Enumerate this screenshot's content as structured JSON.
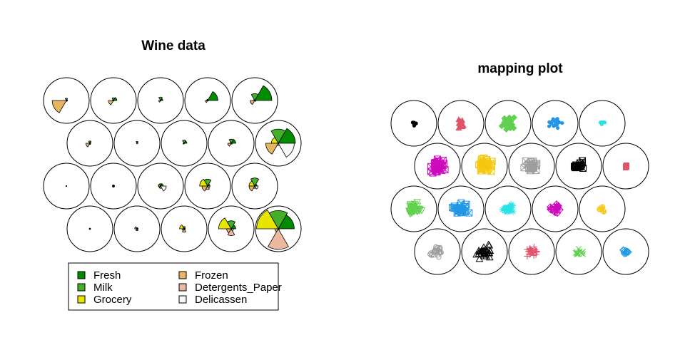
{
  "chart_data": [
    {
      "type": "som-segments",
      "title": "Wine data",
      "grid": {
        "rows": 4,
        "cols": 5,
        "topology": "hexagonal"
      },
      "variables": [
        {
          "name": "Fresh",
          "color": "#008B00"
        },
        {
          "name": "Milk",
          "color": "#43B02A"
        },
        {
          "name": "Grocery",
          "color": "#E6E600"
        },
        {
          "name": "Frozen",
          "color": "#E8B660"
        },
        {
          "name": "Detergents_Paper",
          "color": "#EDB8A0"
        },
        {
          "name": "Delicassen",
          "color": "#F7F7F7"
        }
      ],
      "codes": [
        [
          [
            0.05,
            0.1,
            0.0,
            0.62,
            0.0,
            0.05
          ],
          [
            0.15,
            0.12,
            0.05,
            0.22,
            0.02,
            0.03
          ],
          [
            0.1,
            0.15,
            0.03,
            0.08,
            0.02,
            0.02
          ],
          [
            0.45,
            0.05,
            0.05,
            0.1,
            0.02,
            0.03
          ],
          [
            0.75,
            0.3,
            0.05,
            0.2,
            0.02,
            0.05
          ]
        ],
        [
          [
            0.05,
            0.1,
            0.05,
            0.18,
            0.05,
            0.02
          ],
          [
            0.05,
            0.08,
            0.02,
            0.02,
            0.02,
            0.02
          ],
          [
            0.12,
            0.14,
            0.02,
            0.05,
            0.02,
            0.02
          ],
          [
            0.2,
            0.18,
            0.05,
            0.15,
            0.03,
            0.05
          ],
          [
            0.75,
            0.62,
            0.3,
            0.55,
            0.1,
            0.7
          ]
        ],
        [
          [
            0.02,
            0.02,
            0.02,
            0.02,
            0.02,
            0.02
          ],
          [
            0.05,
            0.05,
            0.05,
            0.05,
            0.05,
            0.05
          ],
          [
            0.12,
            0.1,
            0.1,
            0.08,
            0.1,
            0.25
          ],
          [
            0.1,
            0.3,
            0.35,
            0.25,
            0.15,
            0.1
          ],
          [
            0.1,
            0.35,
            0.25,
            0.25,
            0.1,
            0.15
          ]
        ],
        [
          [
            0.03,
            0.03,
            0.03,
            0.03,
            0.03,
            0.03
          ],
          [
            0.05,
            0.05,
            0.1,
            0.05,
            0.08,
            0.05
          ],
          [
            0.05,
            0.1,
            0.2,
            0.08,
            0.15,
            0.05
          ],
          [
            0.2,
            0.35,
            0.55,
            0.2,
            0.3,
            0.1
          ],
          [
            0.7,
            0.8,
            0.95,
            0.15,
            0.9,
            0.05
          ]
        ]
      ]
    },
    {
      "type": "som-mapping",
      "title": "mapping plot",
      "grid": {
        "rows": 4,
        "cols": 5,
        "topology": "hexagonal"
      },
      "palette": [
        "#000000",
        "#DF536B",
        "#61D04F",
        "#2297E6",
        "#28E2E5",
        "#CD0BBC",
        "#F5C710",
        "#9E9E9E"
      ],
      "pch_cycle": [
        "filled-circle",
        "filled-triangle",
        "filled-diamond",
        "filled-circle",
        "filled-circle",
        "open-square-x",
        "open-square-x",
        "open-square-x",
        "open-square-x",
        "filled-square",
        "open-triangle-down",
        "open-square-x",
        "asterisk",
        "diamond-plus",
        "circle-plus",
        "open-circle",
        "open-triangle",
        "plus",
        "x",
        "open-diamond"
      ],
      "counts": [
        [
          8,
          18,
          28,
          20,
          6
        ],
        [
          40,
          35,
          28,
          18,
          3
        ],
        [
          35,
          28,
          22,
          20,
          6
        ],
        [
          25,
          30,
          24,
          14,
          10
        ]
      ]
    }
  ]
}
